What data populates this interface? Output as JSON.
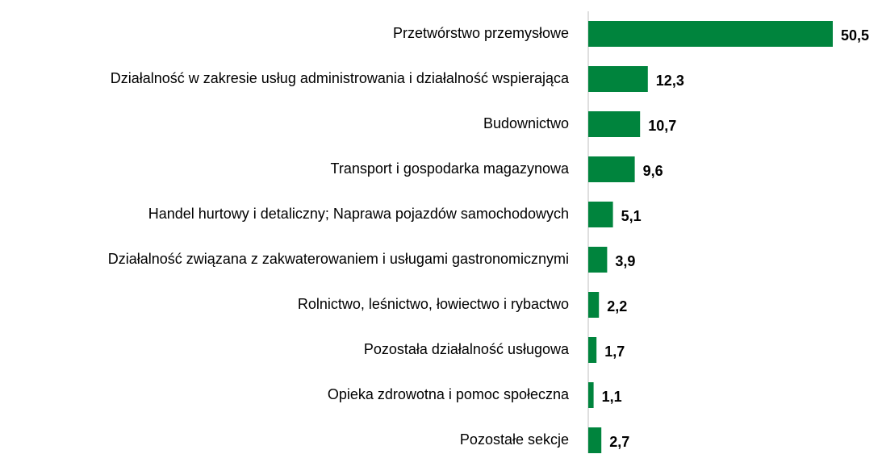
{
  "chart_data": {
    "type": "barh",
    "categories": [
      "Przetwórstwo przemysłowe",
      "Działalność w zakresie usług administrowania i działalność wspierająca",
      "Budownictwo",
      "Transport i gospodarka magazynowa",
      "Handel hurtowy i detaliczny; Naprawa pojazdów samochodowych",
      "Działalność związana z zakwaterowaniem i usługami gastronomicznymi",
      "Rolnictwo, leśnictwo, łowiectwo i rybactwo",
      "Pozostała działalność usługowa",
      "Opieka zdrowotna i pomoc społeczna",
      "Pozostałe sekcje"
    ],
    "values": [
      50.5,
      12.3,
      10.7,
      9.6,
      5.1,
      3.9,
      2.2,
      1.7,
      1.1,
      2.7
    ],
    "value_labels": [
      "50,5",
      "12,3",
      "10,7",
      "9,6",
      "5,1",
      "3,9",
      "2,2",
      "1,7",
      "1,1",
      "2,7"
    ],
    "color": "#00843d"
  }
}
